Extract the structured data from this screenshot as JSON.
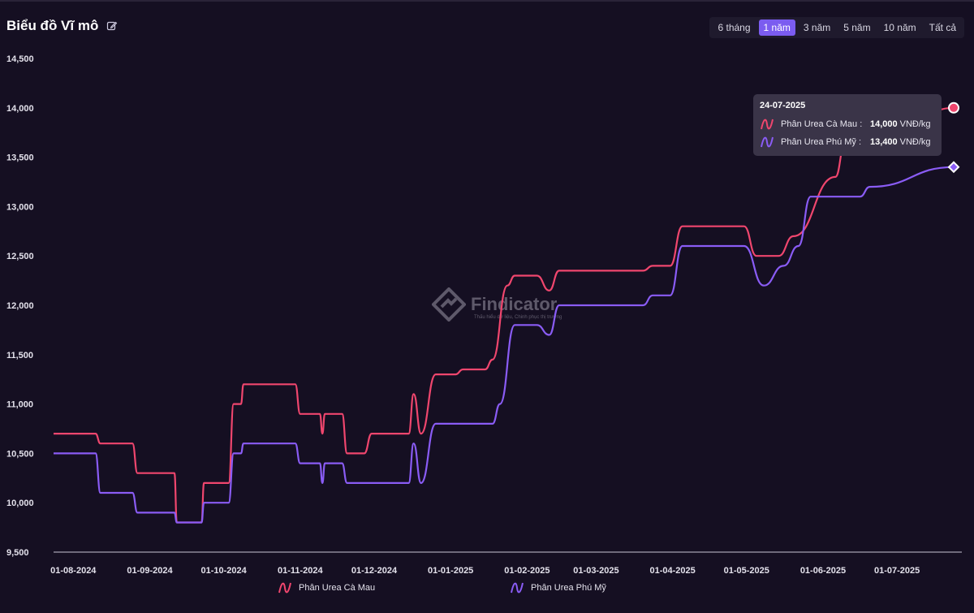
{
  "header": {
    "title": "Biểu đồ Vĩ mô",
    "edit_icon": "edit-icon"
  },
  "ranges": [
    {
      "label": "6 tháng",
      "active": false
    },
    {
      "label": "1 năm",
      "active": true
    },
    {
      "label": "3 năm",
      "active": false
    },
    {
      "label": "5 năm",
      "active": false
    },
    {
      "label": "10 năm",
      "active": false
    },
    {
      "label": "Tất cả",
      "active": false
    }
  ],
  "watermark": {
    "name": "Findicator",
    "tagline": "Thấu hiểu dữ liệu, Chinh phục thị trường"
  },
  "tooltip": {
    "date": "24-07-2025",
    "rows": [
      {
        "name": "Phân Urea Cà Mau :",
        "value": "14,000",
        "unit": "VNĐ/kg"
      },
      {
        "name": "Phân Urea Phú Mỹ :",
        "value": "13,400",
        "unit": "VNĐ/kg"
      }
    ]
  },
  "chart_data": {
    "type": "line",
    "ylim": [
      9500,
      14500
    ],
    "y_ticks": [
      "9,500",
      "10,000",
      "10,500",
      "11,000",
      "11,500",
      "12,000",
      "12,500",
      "13,000",
      "13,500",
      "14,000",
      "14,500"
    ],
    "x_ticks": [
      "01-08-2024",
      "01-09-2024",
      "01-10-2024",
      "01-11-2024",
      "01-12-2024",
      "01-01-2025",
      "01-02-2025",
      "01-03-2025",
      "01-04-2025",
      "01-05-2025",
      "01-06-2025",
      "01-07-2025"
    ],
    "x_range": [
      "2024-07-24",
      "2025-07-24"
    ],
    "legend_position": "bottom",
    "series": [
      {
        "name": "Phân Urea Cà Mau",
        "color": "#f0466e",
        "marker": "circle",
        "points": [
          [
            "2024-07-24",
            10700
          ],
          [
            "2024-08-10",
            10700
          ],
          [
            "2024-08-12",
            10600
          ],
          [
            "2024-08-25",
            10600
          ],
          [
            "2024-08-27",
            10300
          ],
          [
            "2024-09-11",
            10300
          ],
          [
            "2024-09-12",
            9800
          ],
          [
            "2024-09-22",
            9800
          ],
          [
            "2024-09-23",
            10200
          ],
          [
            "2024-10-03",
            10200
          ],
          [
            "2024-10-05",
            11000
          ],
          [
            "2024-10-08",
            11000
          ],
          [
            "2024-10-09",
            11200
          ],
          [
            "2024-10-30",
            11200
          ],
          [
            "2024-11-01",
            10900
          ],
          [
            "2024-11-09",
            10900
          ],
          [
            "2024-11-10",
            10700
          ],
          [
            "2024-11-11",
            10900
          ],
          [
            "2024-11-18",
            10900
          ],
          [
            "2024-11-20",
            10500
          ],
          [
            "2024-11-27",
            10500
          ],
          [
            "2024-11-30",
            10700
          ],
          [
            "2024-12-15",
            10700
          ],
          [
            "2024-12-17",
            11100
          ],
          [
            "2024-12-20",
            10700
          ],
          [
            "2024-12-26",
            11300
          ],
          [
            "2025-01-03",
            11300
          ],
          [
            "2025-01-06",
            11350
          ],
          [
            "2025-01-15",
            11350
          ],
          [
            "2025-01-18",
            11450
          ],
          [
            "2025-01-24",
            12200
          ],
          [
            "2025-01-27",
            12300
          ],
          [
            "2025-02-05",
            12300
          ],
          [
            "2025-02-10",
            12150
          ],
          [
            "2025-02-14",
            12350
          ],
          [
            "2025-03-20",
            12350
          ],
          [
            "2025-03-24",
            12400
          ],
          [
            "2025-03-31",
            12400
          ],
          [
            "2025-04-05",
            12800
          ],
          [
            "2025-04-30",
            12800
          ],
          [
            "2025-05-05",
            12500
          ],
          [
            "2025-05-14",
            12500
          ],
          [
            "2025-05-20",
            12700
          ],
          [
            "2025-06-06",
            13300
          ],
          [
            "2025-06-10",
            13650
          ],
          [
            "2025-06-13",
            13650
          ],
          [
            "2025-06-20",
            13600
          ],
          [
            "2025-07-01",
            13800
          ],
          [
            "2025-07-24",
            14000
          ]
        ]
      },
      {
        "name": "Phân Urea Phú Mỹ",
        "color": "#8a5cf5",
        "marker": "diamond",
        "points": [
          [
            "2024-07-24",
            10500
          ],
          [
            "2024-08-10",
            10500
          ],
          [
            "2024-08-12",
            10100
          ],
          [
            "2024-08-25",
            10100
          ],
          [
            "2024-08-27",
            9900
          ],
          [
            "2024-09-11",
            9900
          ],
          [
            "2024-09-12",
            9800
          ],
          [
            "2024-09-22",
            9800
          ],
          [
            "2024-09-23",
            10000
          ],
          [
            "2024-10-03",
            10000
          ],
          [
            "2024-10-05",
            10500
          ],
          [
            "2024-10-08",
            10500
          ],
          [
            "2024-10-09",
            10600
          ],
          [
            "2024-10-30",
            10600
          ],
          [
            "2024-11-01",
            10400
          ],
          [
            "2024-11-09",
            10400
          ],
          [
            "2024-11-10",
            10200
          ],
          [
            "2024-11-11",
            10400
          ],
          [
            "2024-11-18",
            10400
          ],
          [
            "2024-11-20",
            10200
          ],
          [
            "2024-12-15",
            10200
          ],
          [
            "2024-12-17",
            10600
          ],
          [
            "2024-12-20",
            10200
          ],
          [
            "2024-12-26",
            10800
          ],
          [
            "2025-01-18",
            10800
          ],
          [
            "2025-01-21",
            11000
          ],
          [
            "2025-01-27",
            11800
          ],
          [
            "2025-02-05",
            11800
          ],
          [
            "2025-02-10",
            11700
          ],
          [
            "2025-02-14",
            12000
          ],
          [
            "2025-03-20",
            12000
          ],
          [
            "2025-03-24",
            12100
          ],
          [
            "2025-03-31",
            12100
          ],
          [
            "2025-04-05",
            12600
          ],
          [
            "2025-04-30",
            12600
          ],
          [
            "2025-05-08",
            12200
          ],
          [
            "2025-05-16",
            12400
          ],
          [
            "2025-05-22",
            12600
          ],
          [
            "2025-05-27",
            13100
          ],
          [
            "2025-06-16",
            13100
          ],
          [
            "2025-06-20",
            13200
          ],
          [
            "2025-07-24",
            13400
          ]
        ]
      }
    ]
  }
}
